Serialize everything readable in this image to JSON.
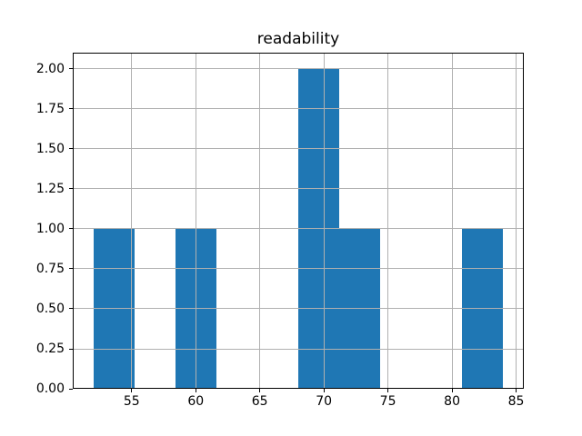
{
  "figure": {
    "background_color": "#ffffff",
    "text_color": "#000000",
    "spine_color": "#000000",
    "bar_color": "#1f77b4",
    "grid_color": "#b0b0b0"
  },
  "chart_data": {
    "type": "bar",
    "subtype": "histogram",
    "title": "readability",
    "xlabel": "",
    "ylabel": "",
    "bin_edges": [
      52.0,
      55.2,
      58.4,
      61.6,
      64.8,
      68.0,
      71.2,
      74.4,
      77.6,
      80.8,
      84.0
    ],
    "counts": [
      1,
      0,
      1,
      0,
      0,
      2,
      1,
      0,
      0,
      1
    ],
    "xlim": [
      50.4,
      85.6
    ],
    "ylim": [
      0,
      2.1
    ],
    "xtick_labels": [
      "55",
      "60",
      "65",
      "70",
      "75",
      "80",
      "85"
    ],
    "xtick_values": [
      55,
      60,
      65,
      70,
      75,
      80,
      85
    ],
    "ytick_labels": [
      "0.00",
      "0.25",
      "0.50",
      "0.75",
      "1.00",
      "1.25",
      "1.50",
      "1.75",
      "2.00"
    ],
    "ytick_values": [
      0.0,
      0.25,
      0.5,
      0.75,
      1.0,
      1.25,
      1.5,
      1.75,
      2.0
    ],
    "grid": true,
    "grid_above_bars": true,
    "legend": false
  }
}
